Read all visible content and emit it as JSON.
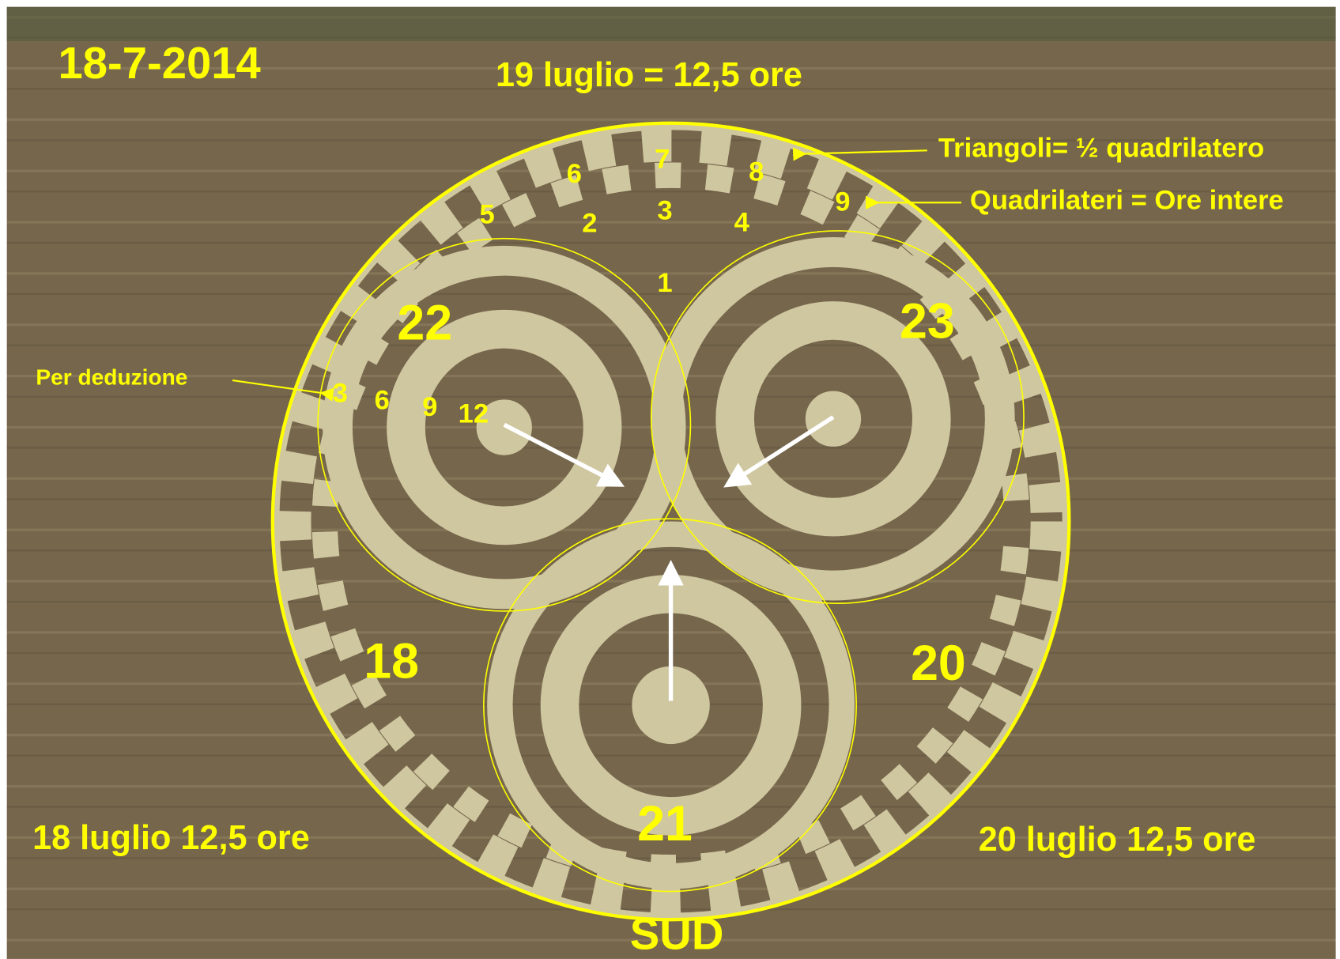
{
  "date": "18-7-2014",
  "top_label": "19 luglio  = 12,5 ore",
  "annotations": {
    "triangles": "Triangoli= ½ quadrilatero",
    "quads": "Quadrilateri = Ore intere",
    "deduction": "Per deduzione"
  },
  "hour_numbers": [
    "1",
    "2",
    "3",
    "4",
    "5",
    "6",
    "7",
    "8",
    "9"
  ],
  "clock_numbers": [
    "3",
    "6",
    "9",
    "12"
  ],
  "circle_labels": {
    "left": "22",
    "right": "23",
    "bottom": "21",
    "lower_left": "18",
    "lower_right": "20"
  },
  "bottom_left": "18 luglio  12,5 ore",
  "bottom_right": "20 luglio  12,5 ore",
  "south": "SUD"
}
